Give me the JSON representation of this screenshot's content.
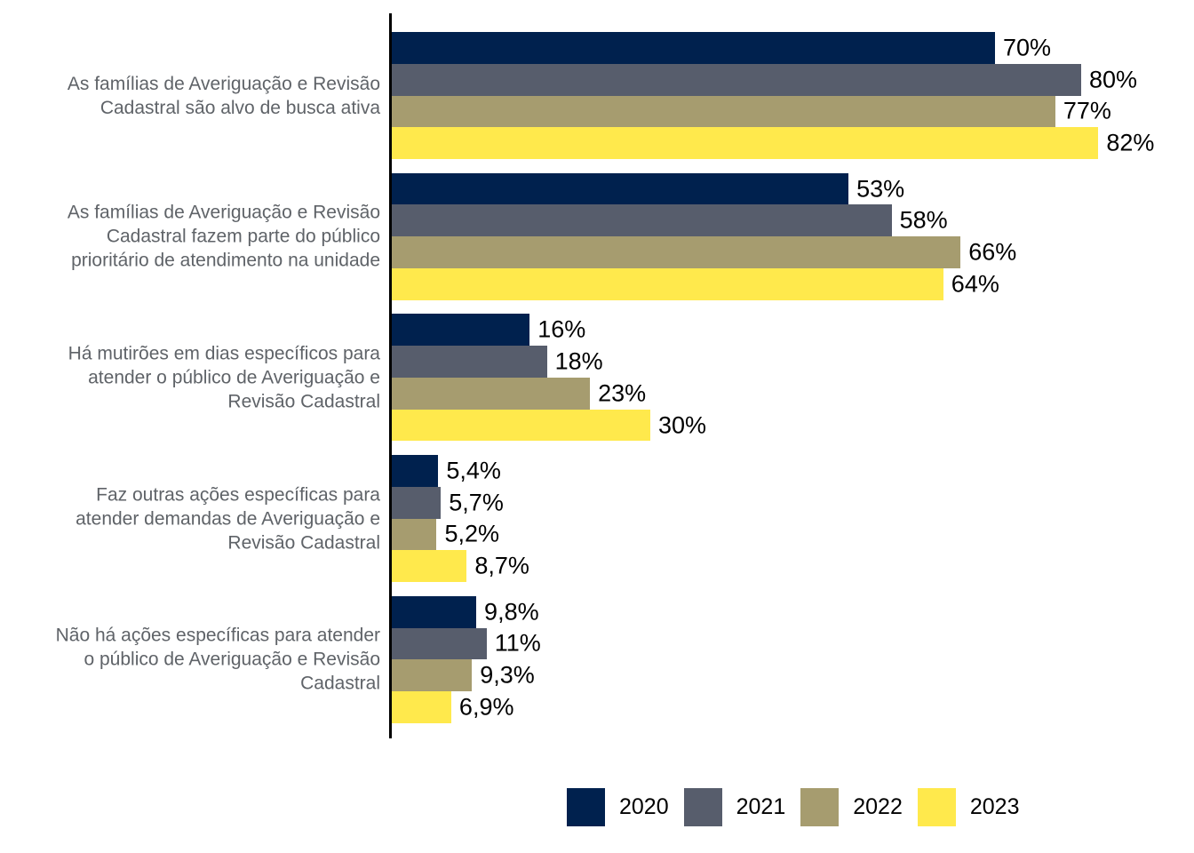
{
  "chart_data": {
    "type": "bar",
    "orientation": "horizontal",
    "title": "",
    "xlabel": "",
    "ylabel": "",
    "grid": false,
    "legend_position": "bottom",
    "value_axis_range": [
      0,
      100
    ],
    "axis_color": "#000000",
    "category_label_color": "#5f6368",
    "value_label_color": "#000000",
    "categories": [
      "As famílias de Averiguação e Revisão\nCadastral são alvo de busca ativa",
      "As famílias de Averiguação e Revisão\nCadastral fazem parte do público\nprioritário de atendimento na unidade",
      "Há mutirões em dias específicos para\natender o público de Averiguação e\nRevisão Cadastral",
      "Faz outras ações específicas para\natender demandas de Averiguação e\nRevisão Cadastral",
      "Não há ações específicas para atender\no público de Averiguação e Revisão\nCadastral"
    ],
    "series": [
      {
        "name": "2020",
        "color": "#00214E",
        "values": [
          70,
          53,
          16,
          5.4,
          9.8
        ],
        "labels": [
          "70%",
          "53%",
          "16%",
          "5,4%",
          "9,8%"
        ]
      },
      {
        "name": "2021",
        "color": "#575D6C",
        "values": [
          80,
          58,
          18,
          5.7,
          11
        ],
        "labels": [
          "80%",
          "58%",
          "18%",
          "5,7%",
          "11%"
        ]
      },
      {
        "name": "2022",
        "color": "#A69C6F",
        "values": [
          77,
          66,
          23,
          5.2,
          9.3
        ],
        "labels": [
          "77%",
          "66%",
          "23%",
          "5,2%",
          "9,3%"
        ]
      },
      {
        "name": "2023",
        "color": "#FFE94C",
        "values": [
          82,
          64,
          30,
          8.7,
          6.9
        ],
        "labels": [
          "82%",
          "64%",
          "30%",
          "8,7%",
          "6,9%"
        ]
      }
    ]
  }
}
